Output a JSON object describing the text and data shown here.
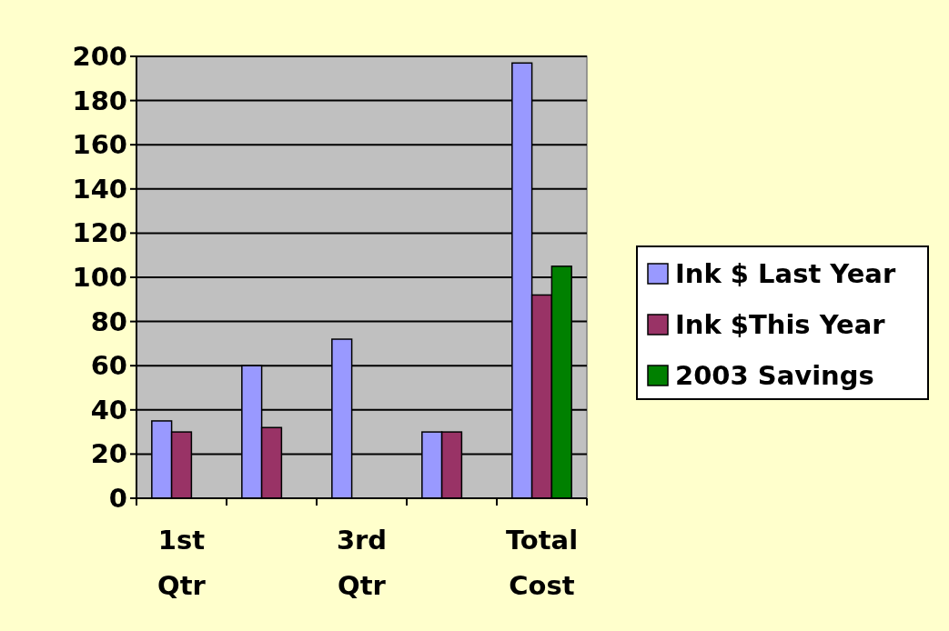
{
  "chart_data": {
    "type": "bar",
    "categories": [
      "1st Qtr",
      null,
      "3rd Qtr",
      null,
      "Total Cost"
    ],
    "series": [
      {
        "name": "Ink $ Last Year",
        "color": "#9999ff",
        "values": [
          35,
          60,
          72,
          30,
          197
        ]
      },
      {
        "name": "Ink $This Year",
        "color": "#993366",
        "values": [
          30,
          32,
          0,
          30,
          92
        ]
      },
      {
        "name": "2003 Savings",
        "color": "#008000",
        "values": [
          null,
          null,
          null,
          null,
          105
        ]
      }
    ],
    "ylim": [
      0,
      200
    ],
    "yticks": [
      0,
      20,
      40,
      60,
      80,
      100,
      120,
      140,
      160,
      180,
      200
    ],
    "grid": "y",
    "legend": "right"
  }
}
